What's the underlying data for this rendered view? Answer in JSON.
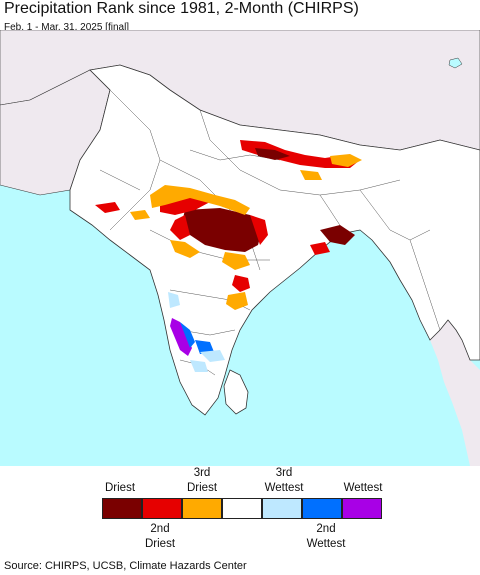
{
  "title": "Precipitation Rank since 1981, 2-Month (CHIRPS)",
  "subtitle": "Feb. 1 - Mar. 31, 2025 [final]",
  "legend": {
    "top_labels": [
      {
        "text": "Driest"
      },
      {
        "text": "3rd\nDriest"
      },
      {
        "text": "3rd\nWettest"
      },
      {
        "text": "Wettest"
      }
    ],
    "bottom_labels": [
      {
        "text": "2nd\nDriest"
      },
      {
        "text": "2nd\nWettest"
      }
    ],
    "colors": [
      "#7a0000",
      "#e60000",
      "#ffaa00",
      "#ffffff",
      "#bee8ff",
      "#0070ff",
      "#a800e6"
    ]
  },
  "source": "Source: CHIRPS, UCSB, Climate Hazards Center",
  "colors": {
    "ocean": "#b9fbff",
    "outside_land": "#efe9ef",
    "borders": "#333333"
  }
}
